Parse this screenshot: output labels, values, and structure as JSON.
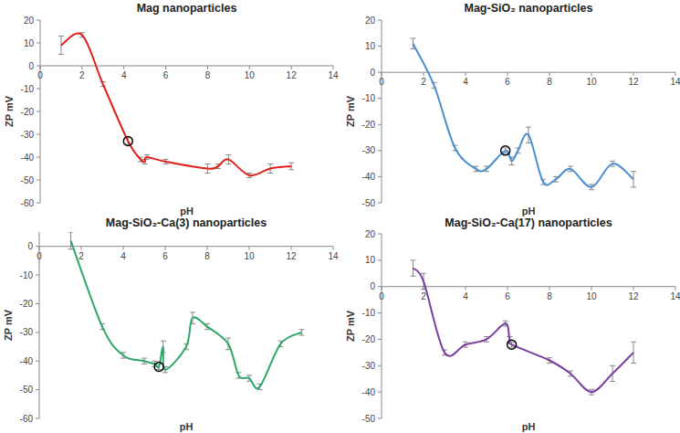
{
  "chart_data": [
    {
      "type": "line",
      "title": "Mag nanoparticles",
      "xlabel": "pH",
      "ylabel": "ZP mV",
      "xlim": [
        0,
        14
      ],
      "xticks": [
        0,
        2,
        4,
        6,
        8,
        10,
        12,
        14
      ],
      "ylim": [
        -60,
        20
      ],
      "yticks": [
        -60,
        -50,
        -40,
        -30,
        -20,
        -10,
        0,
        10,
        20
      ],
      "grid": false,
      "series": [
        {
          "color": "#e0201b",
          "x": [
            1,
            2,
            3,
            4.2,
            4.8,
            5,
            5.1,
            6,
            8,
            8.5,
            9,
            10,
            11,
            12
          ],
          "values": [
            9,
            13.5,
            -8,
            -33,
            -41,
            -42,
            -40,
            -42,
            -45,
            -44,
            -41,
            -48,
            -45,
            -44
          ],
          "errors": [
            4,
            1,
            1,
            1.5,
            1,
            1,
            1,
            1,
            2,
            1,
            2,
            1,
            2,
            1.5
          ]
        },
        {
          "type": "scatter",
          "marker": "circle",
          "color": "#000000",
          "x": [
            4.2
          ],
          "values": [
            -33
          ]
        }
      ]
    },
    {
      "type": "line",
      "title": "Mag-SiO₂ nanoparticles",
      "xlabel": "pH",
      "ylabel": "ZP mV",
      "xlim": [
        0,
        14
      ],
      "xticks": [
        0,
        2,
        4,
        6,
        8,
        10,
        12,
        14
      ],
      "ylim": [
        -50,
        20
      ],
      "yticks": [
        -50,
        -40,
        -30,
        -20,
        -10,
        0,
        10,
        20
      ],
      "grid": false,
      "series": [
        {
          "color": "#4a8fd0",
          "x": [
            1.5,
            2.5,
            3.5,
            4.5,
            5,
            5.9,
            6.2,
            6.5,
            7,
            7.7,
            8.3,
            9,
            10,
            11,
            12
          ],
          "values": [
            11,
            -5,
            -29,
            -37,
            -37,
            -30,
            -34,
            -30,
            -24,
            -42,
            -41,
            -37,
            -44,
            -35,
            -41
          ],
          "errors": [
            2,
            1,
            1,
            1,
            1,
            1,
            1.5,
            1,
            3,
            1,
            1,
            1,
            1,
            1,
            3
          ]
        },
        {
          "type": "scatter",
          "marker": "circle",
          "color": "#000000",
          "x": [
            5.9
          ],
          "values": [
            -30
          ]
        }
      ]
    },
    {
      "type": "line",
      "title": "Mag-SiO₂-Ca(3) nanoparticles",
      "xlabel": "pH",
      "ylabel": "ZP mV",
      "xlim": [
        0,
        14
      ],
      "xticks": [
        0,
        2,
        4,
        6,
        8,
        10,
        12,
        14
      ],
      "ylim": [
        -60,
        5
      ],
      "yticks": [
        -60,
        -50,
        -40,
        -30,
        -20,
        -10,
        0
      ],
      "grid": false,
      "series": [
        {
          "color": "#2ea86a",
          "x": [
            1.5,
            3,
            4,
            5,
            5.5,
            5.7,
            5.9,
            6,
            7,
            7.3,
            8,
            9,
            9.5,
            10,
            10.5,
            11.5,
            12.5
          ],
          "values": [
            2,
            -28,
            -38,
            -40,
            -41,
            -42,
            -35,
            -43,
            -35,
            -25,
            -28,
            -34,
            -45,
            -46,
            -49,
            -34,
            -30
          ],
          "errors": [
            3,
            1,
            1,
            1,
            1,
            1,
            2,
            1,
            1,
            2,
            1,
            2,
            1,
            1,
            1,
            1,
            1
          ]
        },
        {
          "type": "scatter",
          "marker": "circle",
          "color": "#000000",
          "x": [
            5.7
          ],
          "values": [
            -42
          ]
        }
      ]
    },
    {
      "type": "line",
      "title": "Mag-SiO₂-Ca(17) nanoparticles",
      "xlabel": "pH",
      "ylabel": "ZP mV",
      "xlim": [
        0,
        14
      ],
      "xticks": [
        0,
        2,
        4,
        6,
        8,
        10,
        12,
        14
      ],
      "ylim": [
        -50,
        20
      ],
      "yticks": [
        -50,
        -40,
        -30,
        -20,
        -10,
        0,
        10,
        20
      ],
      "grid": false,
      "series": [
        {
          "color": "#7a3ea0",
          "x": [
            1.5,
            2,
            3,
            4,
            5,
            5.9,
            6.1,
            6.2,
            8,
            9,
            10,
            11,
            12
          ],
          "values": [
            7,
            2,
            -25,
            -22,
            -20,
            -14,
            -20,
            -22,
            -28,
            -33,
            -40,
            -33,
            -25
          ],
          "errors": [
            3,
            3,
            1,
            1,
            1,
            1,
            1,
            1,
            1,
            1,
            1,
            3,
            4
          ]
        },
        {
          "type": "scatter",
          "marker": "circle",
          "color": "#000000",
          "x": [
            6.2
          ],
          "values": [
            -22
          ]
        }
      ]
    }
  ]
}
